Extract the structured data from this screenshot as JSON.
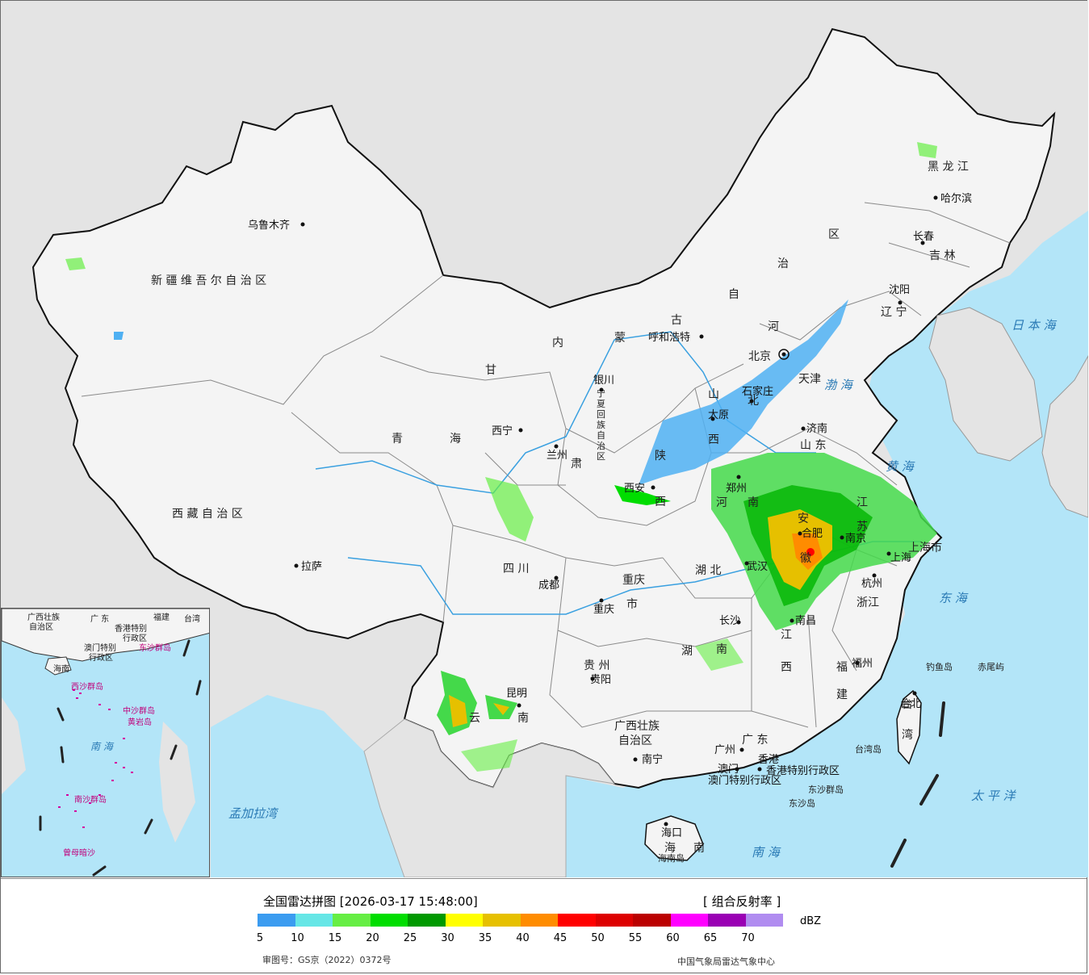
{
  "legend": {
    "title": "全国雷达拼图 [2026-03-17 15:48:00]",
    "product": "[ 组合反射率 ]",
    "unit": "dBZ",
    "colors": [
      "#3b9cf0",
      "#66e6e6",
      "#66ee44",
      "#00dd00",
      "#009900",
      "#ffff00",
      "#e6c000",
      "#ff8c00",
      "#ff0000",
      "#dd0000",
      "#bb0000",
      "#ff00ff",
      "#9a00b4",
      "#b08cf0"
    ],
    "ticks": [
      "5",
      "10",
      "15",
      "20",
      "25",
      "30",
      "35",
      "40",
      "45",
      "50",
      "55",
      "60",
      "65",
      "70"
    ],
    "review_number": "审图号：GS京（2022）0372号",
    "organization": "中国气象局雷达气象中心"
  },
  "map": {
    "provinces": [
      {
        "id": "xinjiang",
        "text": "新 疆 维 吾 尔 自 治 区"
      },
      {
        "id": "xizang",
        "text": "西 藏 自 治 区"
      },
      {
        "id": "qinghai-1",
        "text": "青"
      },
      {
        "id": "qinghai-2",
        "text": "海"
      },
      {
        "id": "gansu",
        "text": "甘"
      },
      {
        "id": "neimenggu-1",
        "text": "内"
      },
      {
        "id": "neimenggu-2",
        "text": "蒙"
      },
      {
        "id": "neimenggu-3",
        "text": "古"
      },
      {
        "id": "neimenggu-4",
        "text": "自"
      },
      {
        "id": "neimenggu-5",
        "text": "治"
      },
      {
        "id": "neimenggu-6",
        "text": "区"
      },
      {
        "id": "heilongjiang",
        "text": "黑 龙 江"
      },
      {
        "id": "jilin",
        "text": "吉 林"
      },
      {
        "id": "liaoning",
        "text": "辽 宁"
      },
      {
        "id": "hebei-1",
        "text": "河"
      },
      {
        "id": "hebei-2",
        "text": "北"
      },
      {
        "id": "shanxi-1",
        "text": "山"
      },
      {
        "id": "shanxi-2",
        "text": "西"
      },
      {
        "id": "shandong",
        "text": "山 东"
      },
      {
        "id": "henan-1",
        "text": "河"
      },
      {
        "id": "henan-2",
        "text": "南"
      },
      {
        "id": "shaanxi-1",
        "text": "陕"
      },
      {
        "id": "shaanxi-2",
        "text": "西"
      },
      {
        "id": "ningxia",
        "text": "宁夏回族自治区"
      },
      {
        "id": "gansu-2",
        "text": "肃"
      },
      {
        "id": "sichuan",
        "text": "四    川"
      },
      {
        "id": "chongqing",
        "text": "重庆"
      },
      {
        "id": "chongqing-2",
        "text": "市"
      },
      {
        "id": "hubei",
        "text": "湖   北"
      },
      {
        "id": "hunan-1",
        "text": "湖"
      },
      {
        "id": "hunan-2",
        "text": "南"
      },
      {
        "id": "jiangxi-1",
        "text": "江"
      },
      {
        "id": "jiangxi-2",
        "text": "西"
      },
      {
        "id": "anhui-1",
        "text": "安"
      },
      {
        "id": "anhui-2",
        "text": "徽"
      },
      {
        "id": "jiangsu-1",
        "text": "江"
      },
      {
        "id": "jiangsu-2",
        "text": "苏"
      },
      {
        "id": "zhejiang",
        "text": "浙江"
      },
      {
        "id": "fujian-1",
        "text": "福"
      },
      {
        "id": "fujian-2",
        "text": "建"
      },
      {
        "id": "guizhou",
        "text": "贵   州"
      },
      {
        "id": "yunnan-1",
        "text": "云"
      },
      {
        "id": "yunnan-2",
        "text": "南"
      },
      {
        "id": "guangxi-1",
        "text": "广西壮族"
      },
      {
        "id": "guangxi-2",
        "text": "自治区"
      },
      {
        "id": "guangdong",
        "text": "广   东"
      },
      {
        "id": "hainan-1",
        "text": "海"
      },
      {
        "id": "hainan-2",
        "text": "南"
      },
      {
        "id": "taiwan-1",
        "text": "台"
      },
      {
        "id": "taiwan-2",
        "text": "湾"
      },
      {
        "id": "shanghai",
        "text": "上海市"
      },
      {
        "id": "tianjin",
        "text": "天津"
      },
      {
        "id": "beijing-label",
        "text": "北京"
      }
    ],
    "cities": [
      {
        "id": "urumqi",
        "text": "乌鲁木齐"
      },
      {
        "id": "lhasa",
        "text": "拉萨"
      },
      {
        "id": "xining",
        "text": "西宁"
      },
      {
        "id": "lanzhou",
        "text": "兰州"
      },
      {
        "id": "yinchuan",
        "text": "银川"
      },
      {
        "id": "huhehaote",
        "text": "呼和浩特"
      },
      {
        "id": "taiyuan",
        "text": "太原"
      },
      {
        "id": "shijiazhuang",
        "text": "石家庄"
      },
      {
        "id": "jinan",
        "text": "济南"
      },
      {
        "id": "zhengzhou",
        "text": "郑州"
      },
      {
        "id": "xian",
        "text": "西安"
      },
      {
        "id": "chengdu",
        "text": "成都"
      },
      {
        "id": "chongqing-city",
        "text": "重庆"
      },
      {
        "id": "wuhan",
        "text": "武汉"
      },
      {
        "id": "hefei",
        "text": "合肥"
      },
      {
        "id": "nanjing",
        "text": "南京"
      },
      {
        "id": "shanghai-city",
        "text": "上海"
      },
      {
        "id": "hangzhou",
        "text": "杭州"
      },
      {
        "id": "nanchang",
        "text": "南昌"
      },
      {
        "id": "changsha",
        "text": "长沙"
      },
      {
        "id": "guiyang",
        "text": "贵阳"
      },
      {
        "id": "kunming",
        "text": "昆明"
      },
      {
        "id": "nanning",
        "text": "南宁"
      },
      {
        "id": "guangzhou",
        "text": "广州"
      },
      {
        "id": "fuzhou",
        "text": "福州"
      },
      {
        "id": "taibei",
        "text": "台北"
      },
      {
        "id": "haikou",
        "text": "海口"
      },
      {
        "id": "harbin",
        "text": "哈尔滨"
      },
      {
        "id": "changchun",
        "text": "长春"
      },
      {
        "id": "shenyang",
        "text": "沈阳"
      },
      {
        "id": "xianggang",
        "text": "香港"
      },
      {
        "id": "aomen",
        "text": "澳门"
      }
    ],
    "special_regions": [
      {
        "id": "hk-sar",
        "text": "香港特别行政区"
      },
      {
        "id": "macao-sar",
        "text": "澳门特别行政区"
      }
    ],
    "seas": [
      {
        "id": "bohai",
        "text": "渤 海"
      },
      {
        "id": "huanghai",
        "text": "黄 海"
      },
      {
        "id": "donghai",
        "text": "东 海"
      },
      {
        "id": "nanhai",
        "text": "南    海"
      },
      {
        "id": "ribenhai",
        "text": "日 本 海"
      },
      {
        "id": "taipingyang",
        "text": "太  平  洋"
      },
      {
        "id": "mengjialawan",
        "text": "孟加拉湾"
      }
    ],
    "islands": [
      {
        "id": "diaoyudao",
        "text": "钓鱼岛"
      },
      {
        "id": "chiweiyu",
        "text": "赤尾屿"
      },
      {
        "id": "taiwandao",
        "text": "台湾岛"
      },
      {
        "id": "dongshaqundao",
        "text": "东沙群岛"
      },
      {
        "id": "dongshadao",
        "text": "东沙岛"
      },
      {
        "id": "hainandao",
        "text": "海南岛"
      }
    ]
  },
  "inset": {
    "labels": [
      {
        "id": "inset-guangxi",
        "text": "广西壮族"
      },
      {
        "id": "inset-guangxi-2",
        "text": "自治区"
      },
      {
        "id": "inset-guangdong",
        "text": "广  东"
      },
      {
        "id": "inset-fujian",
        "text": "福建"
      },
      {
        "id": "inset-taiwan",
        "text": "台湾"
      },
      {
        "id": "inset-hk",
        "text": "香港特别"
      },
      {
        "id": "inset-hk-2",
        "text": "行政区"
      },
      {
        "id": "inset-macao",
        "text": "澳门特别"
      },
      {
        "id": "inset-macao-2",
        "text": "行政区"
      },
      {
        "id": "inset-dongsha",
        "text": "东沙群岛"
      },
      {
        "id": "inset-hainan",
        "text": "海南"
      },
      {
        "id": "inset-xisha",
        "text": "西沙群岛"
      },
      {
        "id": "inset-zhongsha",
        "text": "中沙群岛"
      },
      {
        "id": "inset-huangyan",
        "text": "黄岩岛"
      },
      {
        "id": "inset-nanhai",
        "text": "南   海"
      },
      {
        "id": "inset-nansha",
        "text": "南沙群岛"
      },
      {
        "id": "inset-zengmu",
        "text": "曾母暗沙"
      }
    ]
  }
}
